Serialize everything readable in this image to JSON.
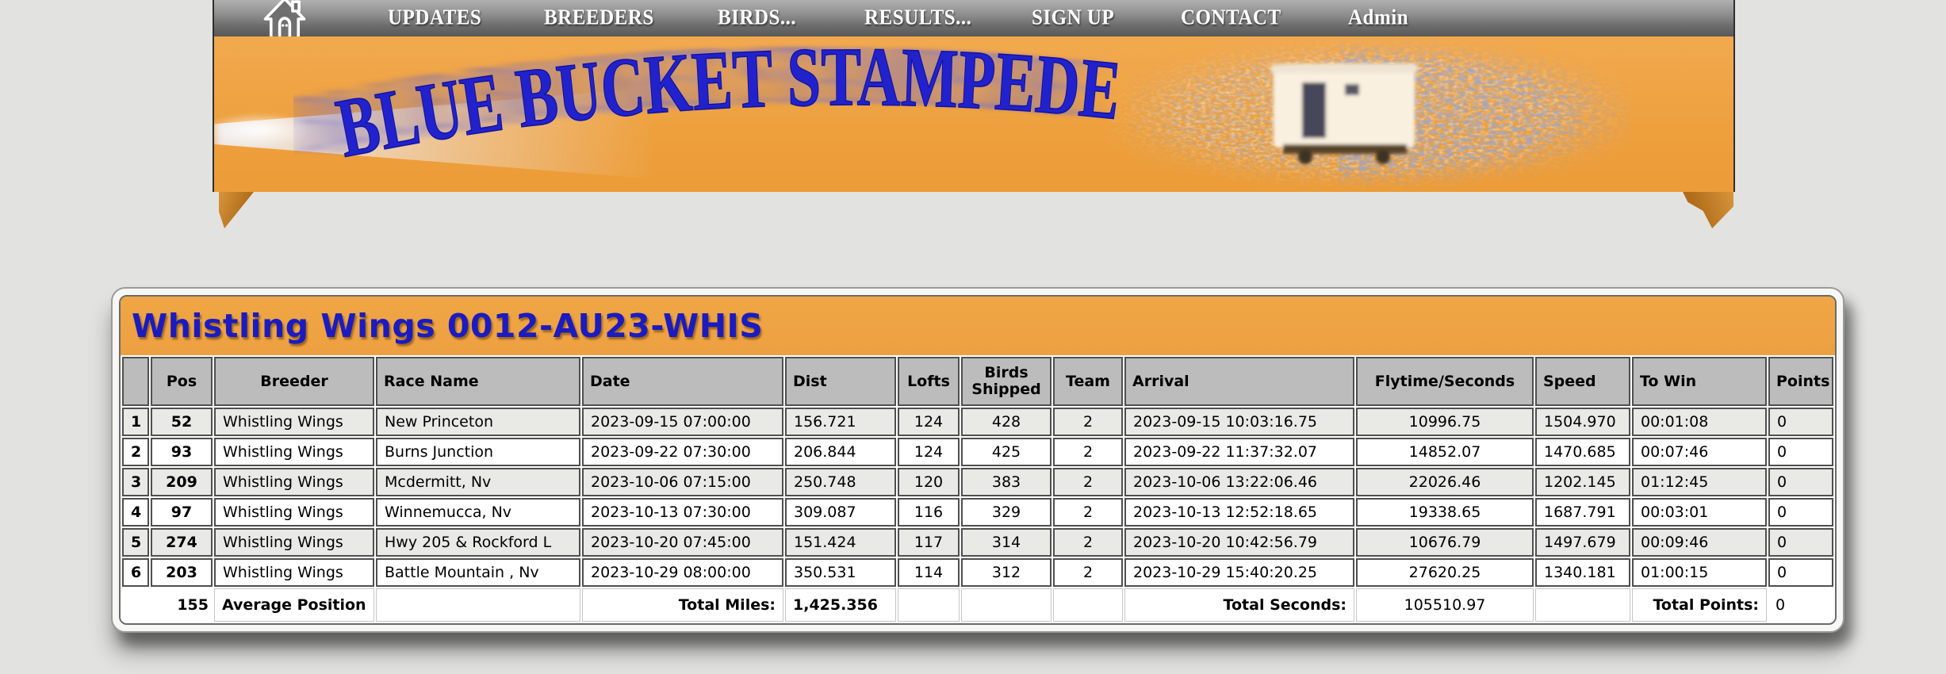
{
  "nav": {
    "items": [
      {
        "id": "updates",
        "label": "UPDATES"
      },
      {
        "id": "breeders",
        "label": "BREEDERS"
      },
      {
        "id": "birds",
        "label": "BIRDS..."
      },
      {
        "id": "results",
        "label": "RESULTS..."
      },
      {
        "id": "signup",
        "label": "SIGN UP"
      },
      {
        "id": "contact",
        "label": "CONTACT"
      },
      {
        "id": "admin",
        "label": "Admin"
      }
    ],
    "home_icon": "home-icon"
  },
  "banner": {
    "title": "BLUE BUCKET STAMPEDE"
  },
  "colors": {
    "banner_orange": "#eea03d",
    "title_blue": "#1b1bc0",
    "banner_text_blue": "#2222cc",
    "nav_gray": "#8e8e8e",
    "header_cell_gray": "#bcbcbc",
    "row_stripe": "#e9e9e6",
    "page_bg": "#e2e2e0"
  },
  "results_card": {
    "title": "Whistling Wings 0012-AU23-WHIS",
    "columns": [
      "",
      "Pos",
      "Breeder",
      "Race Name",
      "Date",
      "Dist",
      "Lofts",
      "Birds Shipped",
      "Team",
      "Arrival",
      "Flytime/Seconds",
      "Speed",
      "To Win",
      "Points"
    ],
    "rows": [
      [
        "1",
        "52",
        "Whistling Wings",
        "New Princeton",
        "2023-09-15 07:00:00",
        "156.721",
        "124",
        "428",
        "2",
        "2023-09-15 10:03:16.75",
        "10996.75",
        "1504.970",
        "00:01:08",
        "0"
      ],
      [
        "2",
        "93",
        "Whistling Wings",
        "Burns Junction",
        "2023-09-22 07:30:00",
        "206.844",
        "124",
        "425",
        "2",
        "2023-09-22 11:37:32.07",
        "14852.07",
        "1470.685",
        "00:07:46",
        "0"
      ],
      [
        "3",
        "209",
        "Whistling Wings",
        "Mcdermitt, Nv",
        "2023-10-06 07:15:00",
        "250.748",
        "120",
        "383",
        "2",
        "2023-10-06 13:22:06.46",
        "22026.46",
        "1202.145",
        "01:12:45",
        "0"
      ],
      [
        "4",
        "97",
        "Whistling Wings",
        "Winnemucca, Nv",
        "2023-10-13 07:30:00",
        "309.087",
        "116",
        "329",
        "2",
        "2023-10-13 12:52:18.65",
        "19338.65",
        "1687.791",
        "00:03:01",
        "0"
      ],
      [
        "5",
        "274",
        "Whistling Wings",
        "Hwy 205 & Rockford L",
        "2023-10-20 07:45:00",
        "151.424",
        "117",
        "314",
        "2",
        "2023-10-20 10:42:56.79",
        "10676.79",
        "1497.679",
        "00:09:46",
        "0"
      ],
      [
        "6",
        "203",
        "Whistling Wings",
        "Battle Mountain , Nv",
        "2023-10-29 08:00:00",
        "350.531",
        "114",
        "312",
        "2",
        "2023-10-29 15:40:20.25",
        "27620.25",
        "1340.181",
        "01:00:15",
        "0"
      ]
    ],
    "footer": {
      "average_position_value": "155",
      "average_position_label": "Average Position",
      "total_miles_label": "Total Miles:",
      "total_miles_value": "1,425.356",
      "total_seconds_label": "Total Seconds:",
      "total_seconds_value": "105510.97",
      "total_points_label": "Total Points:",
      "total_points_value": "0"
    }
  }
}
